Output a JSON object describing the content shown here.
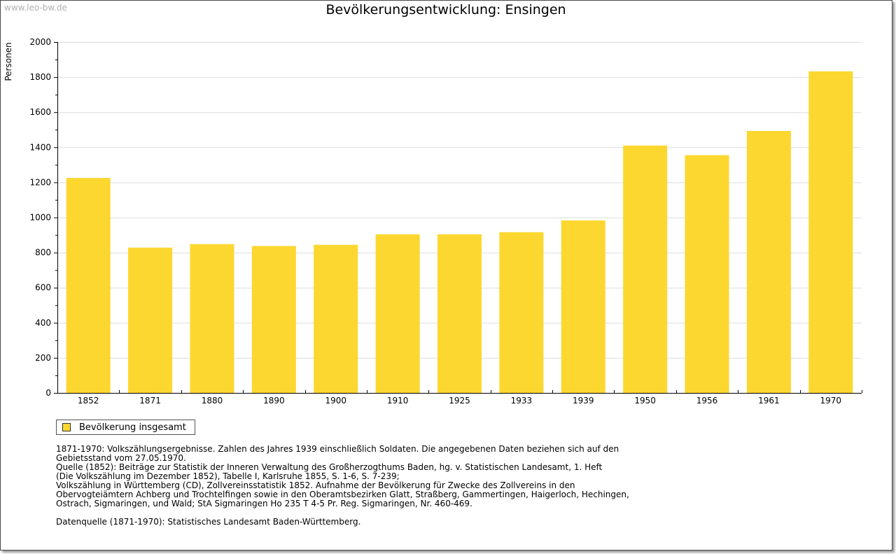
{
  "watermark": "www.leo-bw.de",
  "chart_data": {
    "type": "bar",
    "title": "Bevölkerungsentwicklung: Ensingen",
    "ylabel": "Personen",
    "xlabel": "",
    "ylim": [
      0,
      2000
    ],
    "yticks": [
      0,
      200,
      400,
      600,
      800,
      1000,
      1200,
      1400,
      1600,
      1800,
      2000
    ],
    "grid": true,
    "color": "#fcd72f",
    "categories": [
      "1852",
      "1871",
      "1880",
      "1890",
      "1900",
      "1910",
      "1925",
      "1933",
      "1939",
      "1950",
      "1956",
      "1961",
      "1970"
    ],
    "series": [
      {
        "name": "Bevölkerung insgesamt",
        "values": [
          1225,
          828,
          848,
          837,
          844,
          904,
          904,
          916,
          983,
          1410,
          1355,
          1493,
          1833
        ]
      }
    ]
  },
  "legend": {
    "label": "Bevölkerung insgesamt",
    "color": "#fcd72f"
  },
  "notes": {
    "line1": "1871-1970: Volkszählungsergebnisse. Zahlen des Jahres 1939 einschließlich Soldaten. Die angegebenen Daten beziehen sich auf den",
    "line2": "Gebietsstand vom 27.05.1970.",
    "line3": "Quelle (1852): Beiträge zur Statistik der Inneren Verwaltung des Großherzogthums Baden, hg. v. Statistischen Landesamt, 1. Heft",
    "line4": "(Die Volkszählung im Dezember 1852), Tabelle I, Karlsruhe 1855, S. 1-6, S. 7-239;",
    "line5": "Volkszählung in Württemberg (CD), Zollvereinsstatistik 1852. Aufnahme der Bevölkerung für Zwecke des Zollvereins in den",
    "line6": "Obervogteiämtern Achberg und Trochtelfingen sowie in den Oberamtsbezirken Glatt, Straßberg, Gammertingen, Haigerloch, Hechingen,",
    "line7": "Ostrach, Sigmaringen, und Wald; StA Sigmaringen Ho 235 T 4-5 Pr. Reg. Sigmaringen, Nr. 460-469.",
    "source": "Datenquelle (1871-1970): Statistisches Landesamt Baden-Württemberg."
  }
}
